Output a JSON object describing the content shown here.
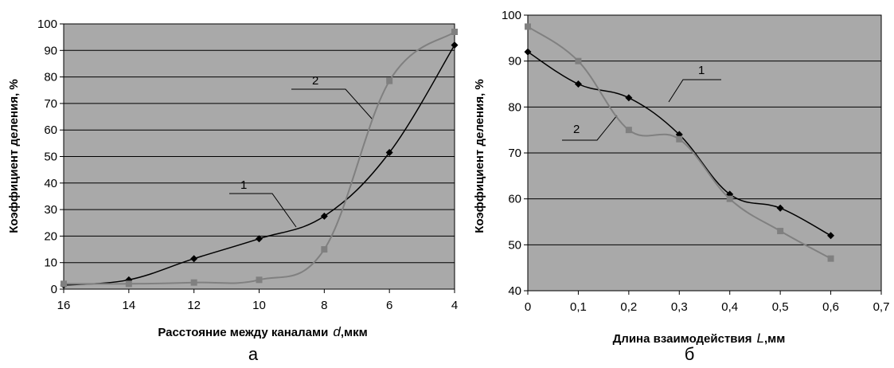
{
  "chart_data": [
    {
      "type": "line",
      "panel_label": "а",
      "xlabel": "Расстояние между каналами",
      "xlabel_var": "d",
      "xlabel_unit": ",мкм",
      "ylabel": "Коэффициент деления, %",
      "xlim": [
        16,
        4
      ],
      "ylim": [
        0,
        100
      ],
      "x_reversed": true,
      "xticks": [
        16,
        14,
        12,
        10,
        8,
        6,
        4
      ],
      "xtick_labels": [
        "16",
        "14",
        "12",
        "10",
        "8",
        "6",
        "4"
      ],
      "yticks": [
        0,
        10,
        20,
        30,
        40,
        50,
        60,
        70,
        80,
        90,
        100
      ],
      "ytick_labels": [
        "0",
        "10",
        "20",
        "30",
        "40",
        "50",
        "60",
        "70",
        "80",
        "90",
        "100"
      ],
      "grid": true,
      "series": [
        {
          "name": "1",
          "color": "#000000",
          "marker": "diamond",
          "x": [
            16,
            14,
            12,
            10,
            8,
            6,
            4
          ],
          "y": [
            1.5,
            3.5,
            11.5,
            19,
            27.5,
            51.5,
            92
          ]
        },
        {
          "name": "2",
          "color": "#808080",
          "marker": "square",
          "x": [
            16,
            14,
            12,
            10,
            8,
            6,
            4
          ],
          "y": [
            2,
            2,
            2.5,
            3.5,
            15,
            78.5,
            97
          ]
        }
      ]
    },
    {
      "type": "line",
      "panel_label": "б",
      "xlabel": "Длина взаимодействия",
      "xlabel_var": "L",
      "xlabel_unit": ",мм",
      "ylabel": "Коэффициент деления, %",
      "xlim": [
        0,
        0.7
      ],
      "ylim": [
        40,
        100
      ],
      "x_reversed": false,
      "xticks": [
        0,
        0.1,
        0.2,
        0.3,
        0.4,
        0.5,
        0.6,
        0.7
      ],
      "xtick_labels": [
        "0",
        "0,1",
        "0,2",
        "0,3",
        "0,4",
        "0,5",
        "0,6",
        "0,7"
      ],
      "yticks": [
        40,
        50,
        60,
        70,
        80,
        90,
        100
      ],
      "ytick_labels": [
        "40",
        "50",
        "60",
        "70",
        "80",
        "90",
        "100"
      ],
      "grid": true,
      "series": [
        {
          "name": "1",
          "color": "#000000",
          "marker": "diamond",
          "x": [
            0,
            0.1,
            0.2,
            0.3,
            0.4,
            0.5,
            0.6
          ],
          "y": [
            92,
            85,
            82,
            74,
            61,
            58,
            52
          ]
        },
        {
          "name": "2",
          "color": "#808080",
          "marker": "square",
          "x": [
            0,
            0.1,
            0.2,
            0.3,
            0.4,
            0.5,
            0.6
          ],
          "y": [
            97.5,
            90,
            75,
            73,
            60,
            53,
            47
          ]
        }
      ]
    }
  ]
}
